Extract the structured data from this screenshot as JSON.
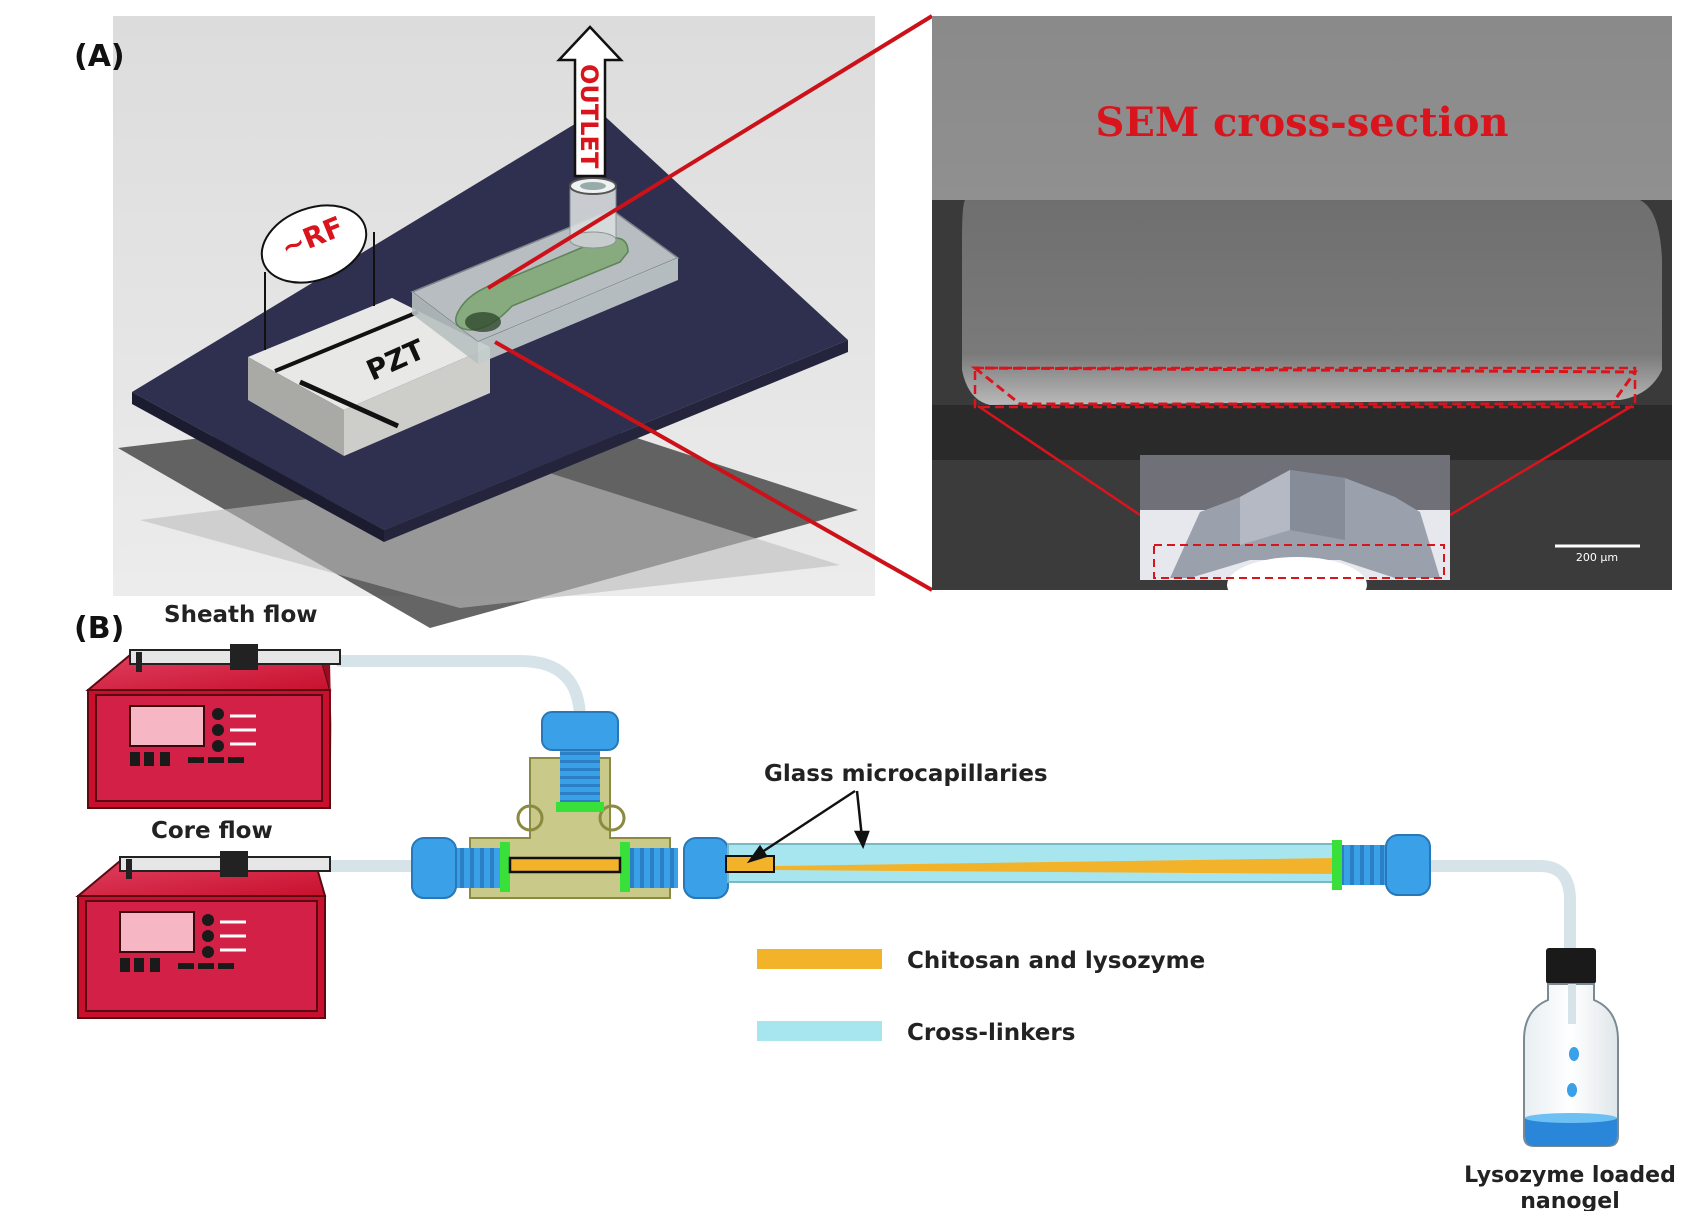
{
  "panels": {
    "a_label": "(A)",
    "b_label": "(B)"
  },
  "panel_a": {
    "rf_label": "~RF",
    "outlet_label": "OUTLET",
    "pzt_label": "PZT",
    "sem_title": "SEM cross-section",
    "scale_bar": "200 μm"
  },
  "panel_b": {
    "sheath_flow": "Sheath flow",
    "core_flow": "Core flow",
    "capillaries": "Glass microcapillaries",
    "product_line1": "Lysozyme loaded",
    "product_line2": "nanogel"
  },
  "legend": [
    {
      "label": "Chitosan and lysozyme",
      "color": "#f2b32a"
    },
    {
      "label": "Cross-linkers",
      "color": "#a8e6ef"
    }
  ],
  "colors": {
    "accent_red": "#d9141c",
    "pump_red": "#d0163a",
    "fitting_blue": "#3aa0e8",
    "ring_green": "#39e03a",
    "tee_olive": "#c9c98a",
    "board_navy": "#2f2f4f"
  }
}
